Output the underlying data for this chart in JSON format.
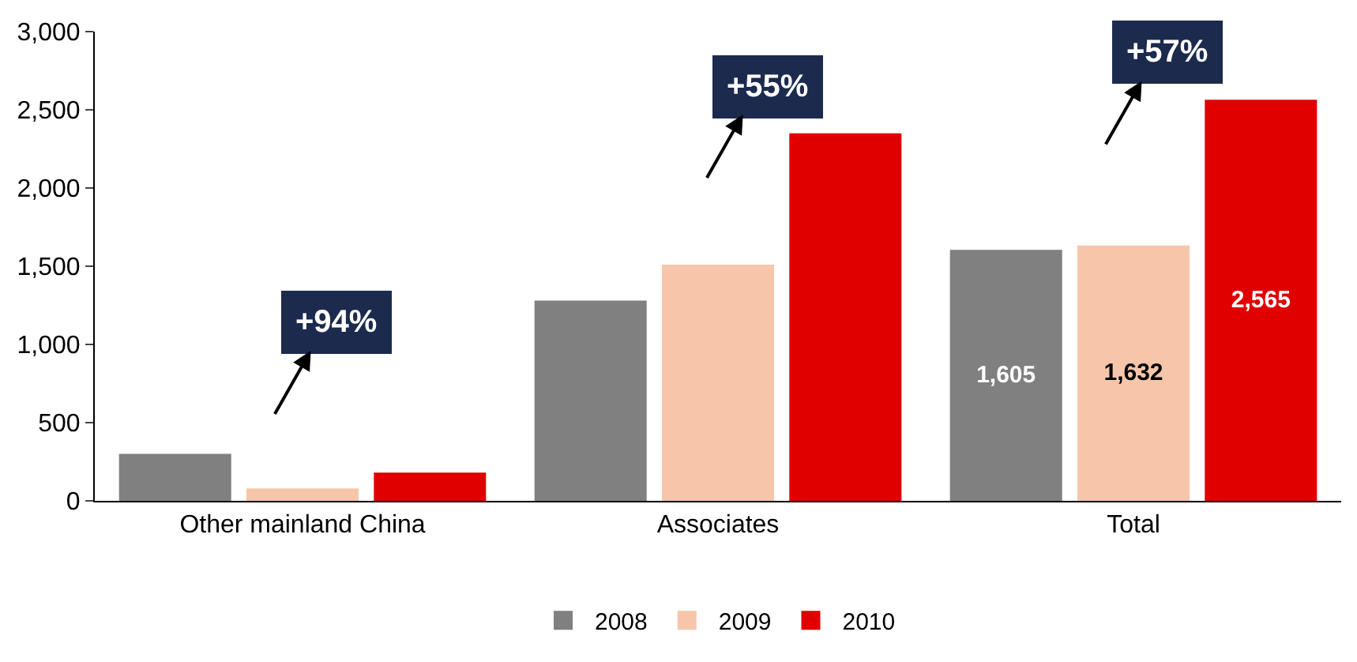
{
  "chart_data": {
    "type": "bar",
    "categories": [
      "Other mainland China",
      "Associates",
      "Total"
    ],
    "series": [
      {
        "name": "2008",
        "color": "#808080",
        "values": [
          300,
          1280,
          1605
        ],
        "value_labels": [
          null,
          null,
          "1,605"
        ]
      },
      {
        "name": "2009",
        "color": "#f7c6aa",
        "values": [
          80,
          1510,
          1632
        ],
        "value_labels": [
          null,
          null,
          "1,632"
        ]
      },
      {
        "name": "2010",
        "color": "#e00000",
        "values": [
          180,
          2350,
          2565
        ],
        "value_labels": [
          null,
          null,
          "2,565"
        ]
      }
    ],
    "ylim": [
      0,
      3000
    ],
    "yticks": [
      0,
      {
        "value": 500,
        "label": "500"
      },
      {
        "value": 1000,
        "label": "1,000"
      },
      {
        "value": 1500,
        "label": "1,500"
      },
      {
        "value": 2000,
        "label": "2,000"
      },
      {
        "value": 2500,
        "label": "2,500"
      },
      {
        "value": 3000,
        "label": "3,000"
      }
    ],
    "annotations": [
      "+94%",
      "+55%",
      "+57%"
    ],
    "legend": "bottom"
  }
}
